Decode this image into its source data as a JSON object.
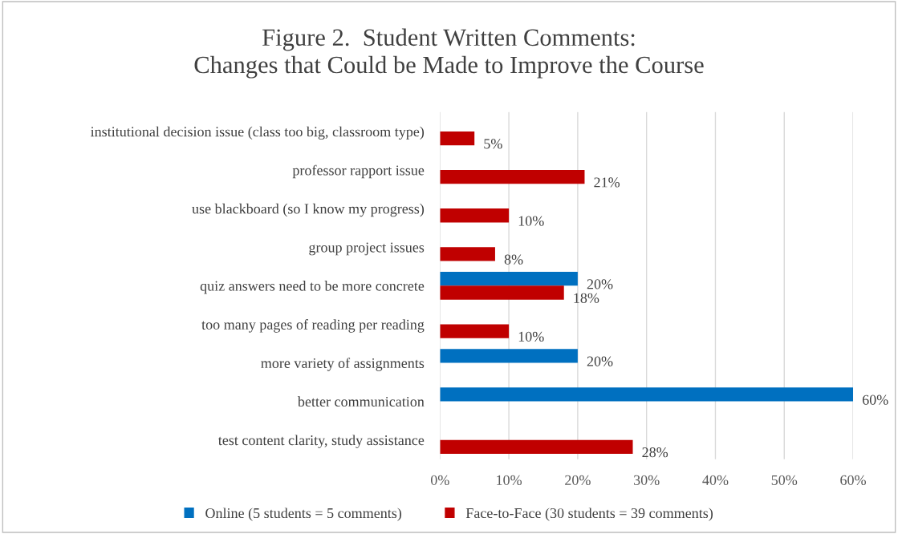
{
  "chart_data": {
    "type": "bar",
    "orientation": "horizontal",
    "title": "Figure 2.  Student Written Comments:\nChanges that Could be Made to Improve the Course",
    "categories": [
      "institutional decision issue (class too big, classroom type)",
      "professor rapport issue",
      "use blackboard (so I know my progress)",
      "group project issues",
      "quiz answers need to be more concrete",
      "too many pages of reading per reading",
      "more variety of assignments",
      "better communication",
      "test content clarity, study assistance"
    ],
    "series": [
      {
        "name": "Online (5 students = 5 comments)",
        "color": "#0070c0",
        "values": [
          null,
          null,
          null,
          null,
          20,
          null,
          20,
          60,
          null
        ],
        "value_labels": [
          null,
          null,
          null,
          null,
          "20%",
          null,
          "20%",
          "60%",
          null
        ]
      },
      {
        "name": "Face-to-Face (30 students = 39 comments)",
        "color": "#c00000",
        "values": [
          5,
          21,
          10,
          8,
          18,
          10,
          null,
          null,
          28
        ],
        "value_labels": [
          "5%",
          "21%",
          "10%",
          "8%",
          "18%",
          "10%",
          null,
          null,
          "28%"
        ]
      }
    ],
    "xlim": [
      0,
      60
    ],
    "xticks": [
      {
        "value": 0,
        "label": "0%"
      },
      {
        "value": 10,
        "label": "10%"
      },
      {
        "value": 20,
        "label": "20%"
      },
      {
        "value": 30,
        "label": "30%"
      },
      {
        "value": 40,
        "label": "40%"
      },
      {
        "value": 50,
        "label": "50%"
      },
      {
        "value": 60,
        "label": "60%"
      }
    ],
    "grid": "x",
    "legend": "bottom"
  }
}
